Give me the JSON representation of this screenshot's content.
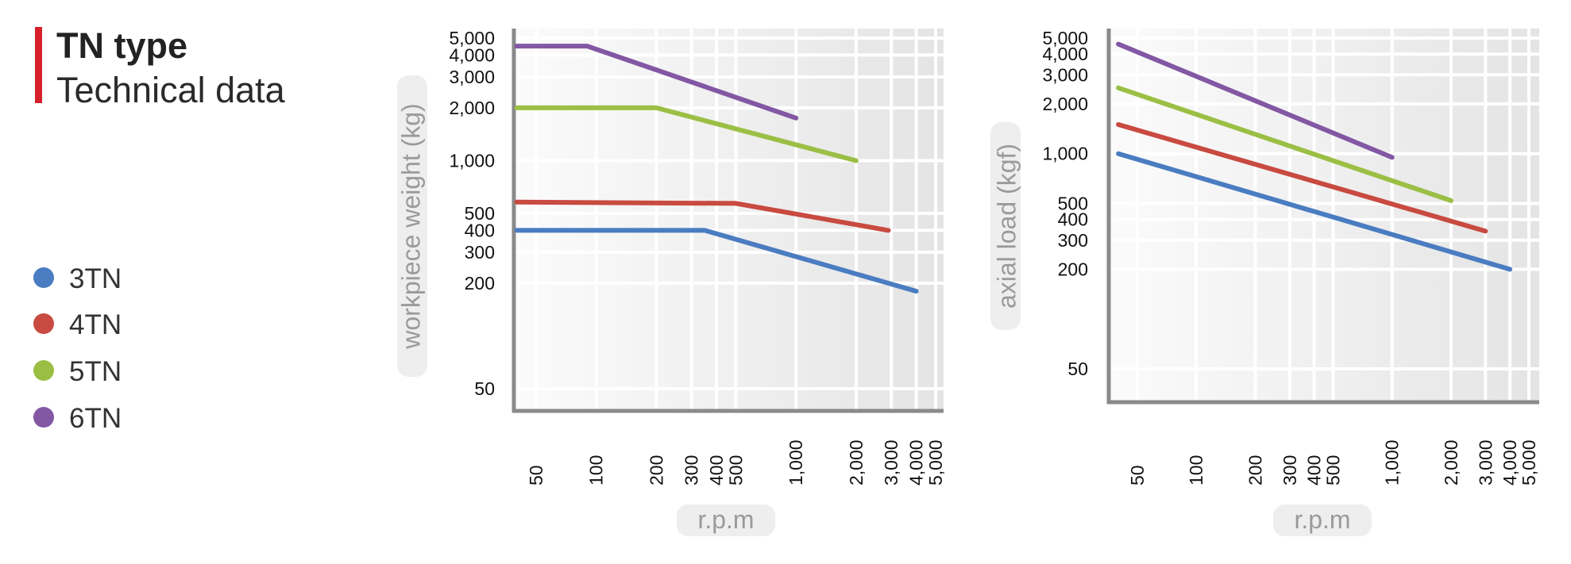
{
  "header": {
    "title": "TN type",
    "subtitle": "Technical data"
  },
  "legend": [
    {
      "label": "3TN",
      "color": "#4a7cc1"
    },
    {
      "label": "4TN",
      "color": "#c84a40"
    },
    {
      "label": "5TN",
      "color": "#9bbf44"
    },
    {
      "label": "6TN",
      "color": "#8257a3"
    }
  ],
  "chart_data": [
    {
      "type": "line",
      "xlabel": "r.p.m",
      "ylabel": "workpiece weight (kg)",
      "xscale": "log",
      "yscale": "log",
      "xticks": [
        50,
        100,
        200,
        300,
        400,
        500,
        1000,
        2000,
        3000,
        4000,
        5000
      ],
      "xtick_labels": [
        "50",
        "100",
        "200",
        "300",
        "400",
        "500",
        "1,000",
        "2,000",
        "3,000",
        "4,000",
        "5,000"
      ],
      "yticks": [
        50,
        200,
        300,
        400,
        500,
        1000,
        2000,
        3000,
        4000,
        5000
      ],
      "ytick_labels": [
        "50",
        "200",
        "300",
        "400",
        "500",
        "1,000",
        "2,000",
        "3,000",
        "4,000",
        "5,000"
      ],
      "grid": true,
      "series": [
        {
          "name": "3TN",
          "color": "#4a7cc1",
          "x": [
            40,
            350,
            4000
          ],
          "y": [
            400,
            400,
            180
          ]
        },
        {
          "name": "4TN",
          "color": "#c84a40",
          "x": [
            40,
            500,
            2900
          ],
          "y": [
            580,
            570,
            400
          ]
        },
        {
          "name": "5TN",
          "color": "#9bbf44",
          "x": [
            40,
            200,
            2000
          ],
          "y": [
            2000,
            2000,
            1000
          ]
        },
        {
          "name": "6TN",
          "color": "#8257a3",
          "x": [
            40,
            90,
            1000
          ],
          "y": [
            4500,
            4500,
            1750
          ]
        }
      ]
    },
    {
      "type": "line",
      "xlabel": "r.p.m",
      "ylabel": "axial load  (kgf)",
      "xscale": "log",
      "yscale": "log",
      "xticks": [
        50,
        100,
        200,
        300,
        400,
        500,
        1000,
        2000,
        3000,
        4000,
        5000
      ],
      "xtick_labels": [
        "50",
        "100",
        "200",
        "300",
        "400",
        "500",
        "1,000",
        "2,000",
        "3,000",
        "4,000",
        "5,000"
      ],
      "yticks": [
        50,
        200,
        300,
        400,
        500,
        1000,
        2000,
        3000,
        4000,
        5000
      ],
      "ytick_labels": [
        "50",
        "200",
        "300",
        "400",
        "500",
        "1,000",
        "2,000",
        "3,000",
        "4,000",
        "5,000"
      ],
      "grid": true,
      "series": [
        {
          "name": "3TN",
          "color": "#4a7cc1",
          "x": [
            40,
            4000
          ],
          "y": [
            1000,
            200
          ]
        },
        {
          "name": "4TN",
          "color": "#c84a40",
          "x": [
            40,
            3000
          ],
          "y": [
            1500,
            340
          ]
        },
        {
          "name": "5TN",
          "color": "#9bbf44",
          "x": [
            40,
            2000
          ],
          "y": [
            2500,
            520
          ]
        },
        {
          "name": "6TN",
          "color": "#8257a3",
          "x": [
            40,
            1000
          ],
          "y": [
            4600,
            950
          ]
        }
      ]
    }
  ]
}
